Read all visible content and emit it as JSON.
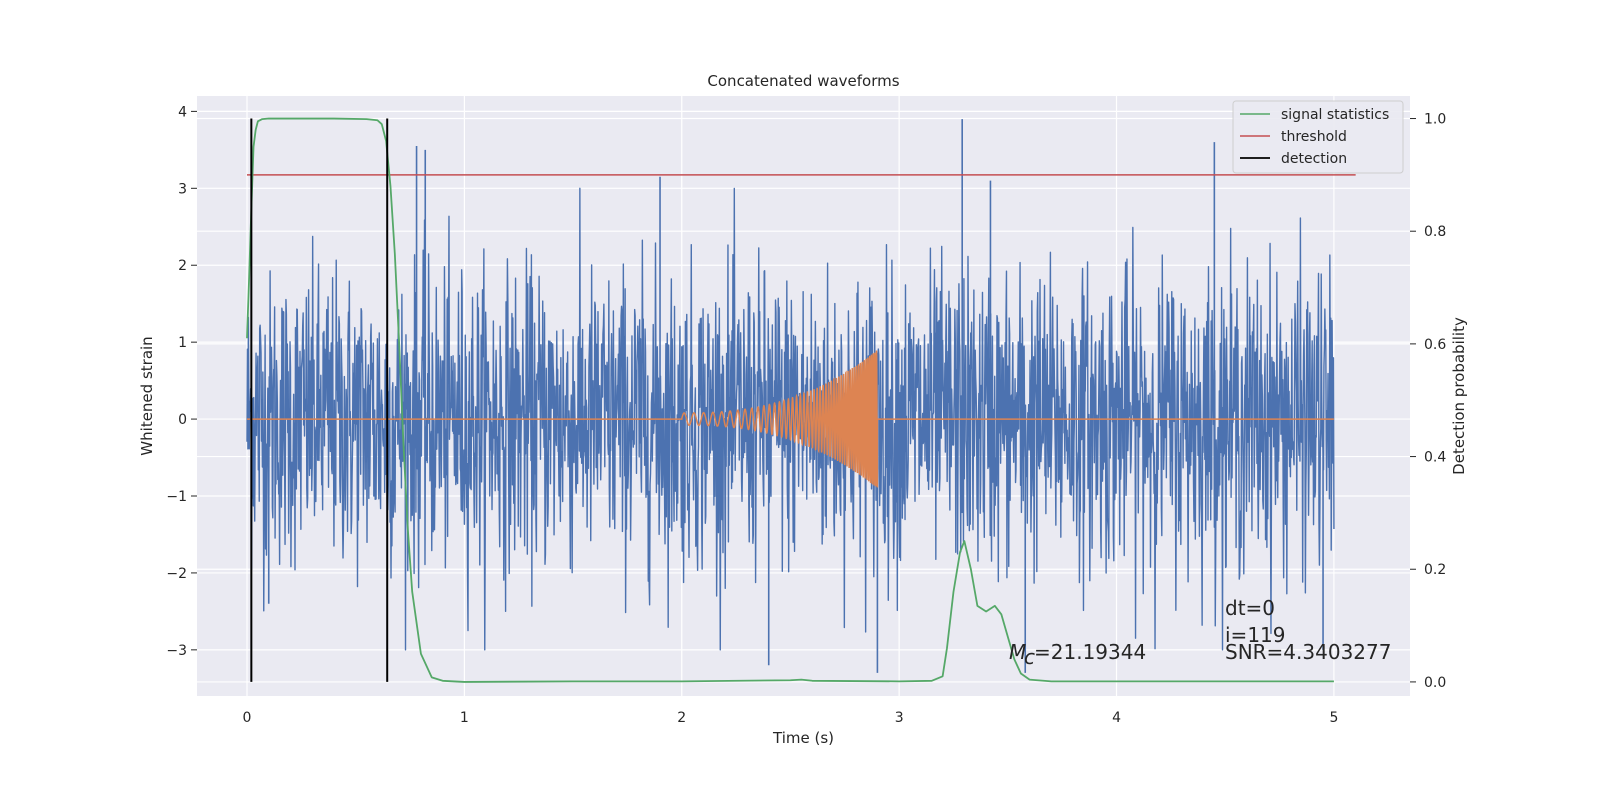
{
  "chart_data": {
    "type": "line",
    "title": "Concatenated waveforms",
    "xlabel": "Time (s)",
    "ylabel": "Whitened strain",
    "y2label": "Detection probability",
    "xlim": [
      -0.23,
      5.35
    ],
    "ylim": [
      -3.6,
      4.2
    ],
    "y2lim": [
      -0.025,
      1.04
    ],
    "xticks": [
      "0",
      "1",
      "2",
      "3",
      "4",
      "5"
    ],
    "xtick_values": [
      0,
      1,
      2,
      3,
      4,
      5
    ],
    "yticks": [
      "−3",
      "−2",
      "−1",
      "0",
      "1",
      "2",
      "3",
      "4"
    ],
    "ytick_values": [
      -3,
      -2,
      -1,
      0,
      1,
      2,
      3,
      4
    ],
    "y2ticks": [
      "0.0",
      "0.2",
      "0.4",
      "0.6",
      "0.8",
      "1.0"
    ],
    "y2tick_values": [
      0.0,
      0.2,
      0.4,
      0.6,
      0.8,
      1.0
    ],
    "grid": true,
    "legend_position": "top-right",
    "colors": {
      "background": "#eaeaf2",
      "grid": "#ffffff",
      "strain": "#4c72b0",
      "template": "#dd8452",
      "signal_statistics": "#55a868",
      "threshold": "#c44e52",
      "detection": "#000000"
    },
    "series": [
      {
        "name": "",
        "key": "strain",
        "description_only": "whitened noisy strain, drawn as dense noise between about -3.3 and 3.9",
        "x_range": [
          0,
          5
        ],
        "spikes": [
          [
            0.78,
            3.55
          ],
          [
            0.82,
            3.5
          ],
          [
            1.9,
            3.15
          ],
          [
            3.29,
            3.9
          ],
          [
            4.45,
            3.6
          ],
          [
            2.9,
            -3.3
          ],
          [
            3.58,
            -3.3
          ],
          [
            4.95,
            -3.0
          ],
          [
            2.4,
            -3.2
          ],
          [
            3.42,
            3.1
          ],
          [
            0.1,
            -2.4
          ]
        ]
      },
      {
        "name": "",
        "key": "template",
        "description_only": "injected chirp template: zero except a growing oscillation from t=2.0 to t=2.9 reaching about ±0.9",
        "x_range": [
          0,
          5
        ],
        "chirp_start": 2.0,
        "chirp_end": 2.9,
        "peak_amplitude": 0.9
      },
      {
        "name": "signal statistics",
        "key": "signal_statistics",
        "axis": "right",
        "x": [
          0.0,
          0.01,
          0.02,
          0.03,
          0.04,
          0.05,
          0.07,
          0.1,
          0.2,
          0.4,
          0.55,
          0.6,
          0.62,
          0.64,
          0.66,
          0.68,
          0.7,
          0.72,
          0.74,
          0.76,
          0.8,
          0.85,
          0.9,
          1.0,
          1.5,
          2.0,
          2.5,
          2.55,
          2.6,
          3.0,
          3.15,
          3.2,
          3.22,
          3.25,
          3.28,
          3.3,
          3.33,
          3.36,
          3.4,
          3.44,
          3.47,
          3.5,
          3.53,
          3.56,
          3.6,
          3.7,
          4.0,
          4.5,
          5.0
        ],
        "y": [
          0.61,
          0.72,
          0.84,
          0.95,
          0.98,
          0.995,
          0.999,
          1.0,
          1.0,
          1.0,
          0.999,
          0.997,
          0.99,
          0.96,
          0.88,
          0.76,
          0.6,
          0.42,
          0.27,
          0.16,
          0.05,
          0.008,
          0.002,
          0.0,
          0.001,
          0.001,
          0.003,
          0.004,
          0.002,
          0.001,
          0.002,
          0.01,
          0.06,
          0.16,
          0.23,
          0.25,
          0.2,
          0.135,
          0.125,
          0.135,
          0.12,
          0.08,
          0.04,
          0.015,
          0.004,
          0.001,
          0.001,
          0.001,
          0.001
        ]
      },
      {
        "name": "threshold",
        "key": "threshold",
        "axis": "right",
        "x": [
          0.0,
          5.1
        ],
        "y": [
          0.9,
          0.9
        ]
      },
      {
        "name": "detection",
        "key": "detection",
        "axis": "right",
        "x_positions": [
          0.02,
          0.645
        ],
        "y_span": [
          0.0,
          1.0
        ]
      }
    ],
    "annotations": {
      "mc": "=21.19344",
      "mc_symbol": "M",
      "mc_subscript": "c",
      "dt": "dt=0",
      "i": "i=119",
      "snr": "SNR=4.3403277"
    }
  }
}
